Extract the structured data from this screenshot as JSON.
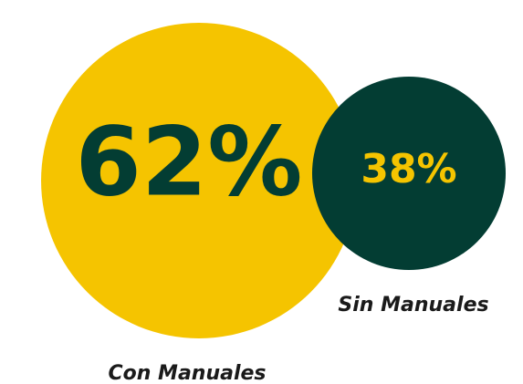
{
  "chart_data": {
    "type": "circles",
    "categories": [
      "Con Manuales",
      "Sin Manuales"
    ],
    "values": [
      62,
      38
    ],
    "value_labels": [
      "62%",
      "38%"
    ],
    "colors": [
      "#f5c400",
      "#033d33"
    ],
    "label_colors": [
      "#033d33",
      "#f5c400"
    ]
  }
}
